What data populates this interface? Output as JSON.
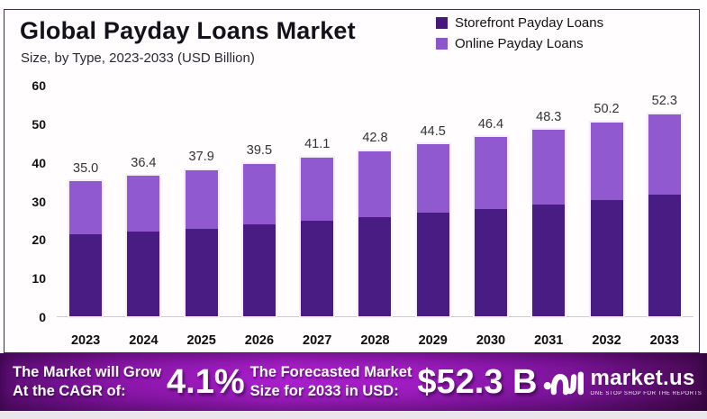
{
  "header": {
    "title": "Global Payday Loans Market",
    "subtitle": "Size, by Type, 2023-2033 (USD Billion)"
  },
  "legend": {
    "items": [
      {
        "label": "Storefront Payday Loans",
        "color": "#44187d"
      },
      {
        "label": "Online Payday Loans",
        "color": "#8d55cb"
      }
    ]
  },
  "chart_data": {
    "type": "bar",
    "stacked": true,
    "title": "Global Payday Loans Market",
    "subtitle": "Size, by Type, 2023-2033 (USD Billion)",
    "categories": [
      "2023",
      "2024",
      "2025",
      "2026",
      "2027",
      "2028",
      "2029",
      "2030",
      "2031",
      "2032",
      "2033"
    ],
    "series": [
      {
        "name": "Storefront Payday Loans",
        "color": "#481c83",
        "values": [
          21.2,
          22.0,
          22.7,
          23.8,
          24.7,
          25.6,
          26.8,
          27.9,
          29.0,
          30.1,
          31.5
        ]
      },
      {
        "name": "Online Payday Loans",
        "color": "#9159cf",
        "values": [
          13.8,
          14.4,
          15.2,
          15.7,
          16.4,
          17.2,
          17.7,
          18.5,
          19.3,
          20.1,
          20.8
        ]
      }
    ],
    "totals": [
      35.0,
      36.4,
      37.9,
      39.5,
      41.1,
      42.8,
      44.5,
      46.4,
      48.3,
      50.2,
      52.3
    ],
    "total_labels": [
      "35.0",
      "36.4",
      "37.9",
      "39.5",
      "41.1",
      "42.8",
      "44.5",
      "46.4",
      "48.3",
      "50.2",
      "52.3"
    ],
    "ylim": [
      0,
      60
    ],
    "yticks": [
      0,
      10,
      20,
      30,
      40,
      50,
      60
    ],
    "grid": false,
    "legend_position": "top-right",
    "xlabel": "",
    "ylabel": ""
  },
  "footer": {
    "cagr_label_line1": "The Market will Grow",
    "cagr_label_line2": "At the CAGR of:",
    "cagr_value": "4.1%",
    "forecast_label_line1": "The Forecasted Market",
    "forecast_label_line2": "Size for 2033 in USD:",
    "forecast_value": "$52.3 B",
    "brand_name": "market.us",
    "brand_tagline": "ONE STOP SHOP FOR THE REPORTS"
  },
  "colors": {
    "storefront": "#481c83",
    "online": "#9159cf",
    "axis_line": "#cfc9d2",
    "banner_start": "#5a0d72",
    "banner_mid": "#a81fcb",
    "banner_end": "#45094f",
    "text_dark": "#15111a"
  }
}
